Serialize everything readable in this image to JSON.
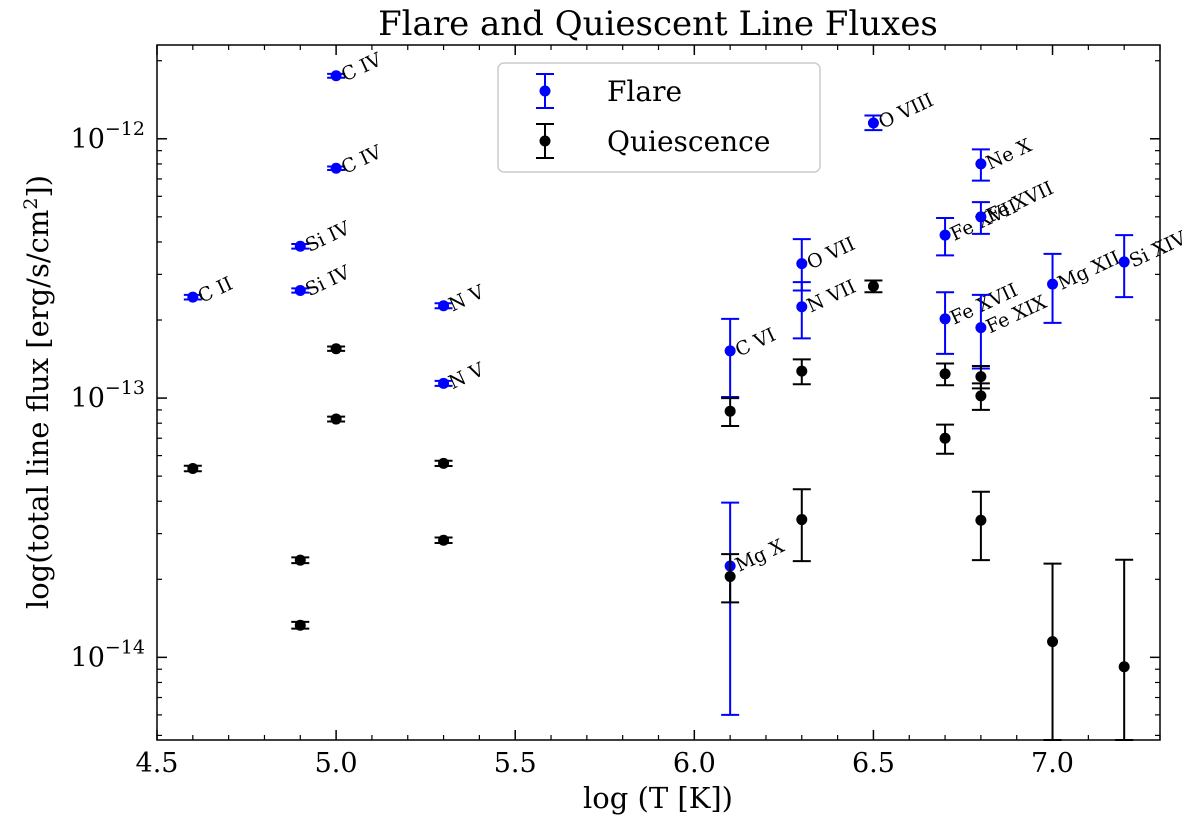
{
  "chart_data": {
    "type": "scatter",
    "title": "Flare and Quiescent Line Fluxes",
    "xlabel": "log (T [K])",
    "ylabel": {
      "prefix": "log(total line flux [erg/s/cm",
      "sup": "2",
      "suffix": "])"
    },
    "yscale": "log",
    "xlim": [
      4.5,
      7.3
    ],
    "ylim": [
      4.8e-15,
      2.3e-12
    ],
    "xticks": [
      {
        "value": 4.5,
        "label": "4.5"
      },
      {
        "value": 5.0,
        "label": "5.0"
      },
      {
        "value": 5.5,
        "label": "5.5"
      },
      {
        "value": 6.0,
        "label": "6.0"
      },
      {
        "value": 6.5,
        "label": "6.5"
      },
      {
        "value": 7.0,
        "label": "7.0"
      }
    ],
    "yticks": [
      {
        "value": 1e-14,
        "base": "10",
        "exp": "−14"
      },
      {
        "value": 1e-13,
        "base": "10",
        "exp": "−13"
      },
      {
        "value": 1e-12,
        "base": "10",
        "exp": "−12"
      }
    ],
    "colors": {
      "flare": "#0000ff",
      "quiescence": "#000000"
    },
    "legend": {
      "position": "upper-center",
      "entries": [
        {
          "label": "Flare",
          "series": "flare"
        },
        {
          "label": "Quiescence",
          "series": "quiescence"
        }
      ]
    },
    "series": [
      {
        "name": "Flare",
        "key": "flare",
        "points": [
          {
            "x": 4.6,
            "y": 2.45e-13,
            "lo": 2.4e-13,
            "hi": 2.5e-13,
            "label": "C II"
          },
          {
            "x": 4.9,
            "y": 3.85e-13,
            "lo": 3.77e-13,
            "hi": 3.93e-13,
            "label": "Si IV"
          },
          {
            "x": 4.9,
            "y": 2.6e-13,
            "lo": 2.55e-13,
            "hi": 2.65e-13,
            "label": "Si IV"
          },
          {
            "x": 5.0,
            "y": 1.75e-12,
            "lo": 1.72e-12,
            "hi": 1.78e-12,
            "label": "C IV"
          },
          {
            "x": 5.0,
            "y": 7.7e-13,
            "lo": 7.58e-13,
            "hi": 7.82e-13,
            "label": "C IV"
          },
          {
            "x": 5.3,
            "y": 2.27e-13,
            "lo": 2.22e-13,
            "hi": 2.32e-13,
            "label": "N V"
          },
          {
            "x": 5.3,
            "y": 1.14e-13,
            "lo": 1.115e-13,
            "hi": 1.165e-13,
            "label": "N V"
          },
          {
            "x": 6.1,
            "y": 1.52e-13,
            "lo": 1.01e-13,
            "hi": 2.02e-13,
            "label": "C VI"
          },
          {
            "x": 6.1,
            "y": 2.25e-14,
            "lo": 6e-15,
            "hi": 3.95e-14,
            "label": "Mg X"
          },
          {
            "x": 6.3,
            "y": 3.3e-13,
            "lo": 2.6e-13,
            "hi": 4.1e-13,
            "label": "O VII"
          },
          {
            "x": 6.3,
            "y": 2.25e-13,
            "lo": 1.7e-13,
            "hi": 2.8e-13,
            "label": "N VII"
          },
          {
            "x": 6.5,
            "y": 1.15e-12,
            "lo": 1.08e-12,
            "hi": 1.23e-12,
            "label": "O VIII"
          },
          {
            "x": 6.7,
            "y": 4.25e-13,
            "lo": 3.55e-13,
            "hi": 4.95e-13,
            "label": "Fe XVII"
          },
          {
            "x": 6.7,
            "y": 2.02e-13,
            "lo": 1.48e-13,
            "hi": 2.56e-13,
            "label": "Fe XVII"
          },
          {
            "x": 6.8,
            "y": 8e-13,
            "lo": 6.9e-13,
            "hi": 9.1e-13,
            "label": "Ne X"
          },
          {
            "x": 6.8,
            "y": 5e-13,
            "lo": 4.3e-13,
            "hi": 5.7e-13,
            "label": "Fe XVII"
          },
          {
            "x": 6.8,
            "y": 1.87e-13,
            "lo": 1.3e-13,
            "hi": 2.5e-13,
            "label": "Fe XIX"
          },
          {
            "x": 7.0,
            "y": 2.75e-13,
            "lo": 1.95e-13,
            "hi": 3.6e-13,
            "label": "Mg XII"
          },
          {
            "x": 7.2,
            "y": 3.35e-13,
            "lo": 2.45e-13,
            "hi": 4.25e-13,
            "label": "Si XIV"
          }
        ]
      },
      {
        "name": "Quiescence",
        "key": "quiescence",
        "points": [
          {
            "x": 4.6,
            "y": 5.35e-14,
            "lo": 5.22e-14,
            "hi": 5.48e-14
          },
          {
            "x": 4.9,
            "y": 2.37e-14,
            "lo": 2.31e-14,
            "hi": 2.43e-14
          },
          {
            "x": 4.9,
            "y": 1.33e-14,
            "lo": 1.29e-14,
            "hi": 1.37e-14
          },
          {
            "x": 5.0,
            "y": 1.55e-13,
            "lo": 1.52e-13,
            "hi": 1.58e-13
          },
          {
            "x": 5.0,
            "y": 8.3e-14,
            "lo": 8.12e-14,
            "hi": 8.48e-14
          },
          {
            "x": 5.3,
            "y": 5.6e-14,
            "lo": 5.47e-14,
            "hi": 5.73e-14
          },
          {
            "x": 5.3,
            "y": 2.83e-14,
            "lo": 2.76e-14,
            "hi": 2.9e-14
          },
          {
            "x": 6.1,
            "y": 8.9e-14,
            "lo": 7.8e-14,
            "hi": 1e-13
          },
          {
            "x": 6.1,
            "y": 2.05e-14,
            "lo": 1.63e-14,
            "hi": 2.5e-14
          },
          {
            "x": 6.3,
            "y": 1.27e-13,
            "lo": 1.13e-13,
            "hi": 1.41e-13
          },
          {
            "x": 6.3,
            "y": 3.4e-14,
            "lo": 2.35e-14,
            "hi": 4.45e-14
          },
          {
            "x": 6.5,
            "y": 2.7e-13,
            "lo": 2.56e-13,
            "hi": 2.84e-13
          },
          {
            "x": 6.7,
            "y": 1.24e-13,
            "lo": 1.12e-13,
            "hi": 1.36e-13
          },
          {
            "x": 6.7,
            "y": 7e-14,
            "lo": 6.1e-14,
            "hi": 7.9e-14
          },
          {
            "x": 6.8,
            "y": 1.21e-13,
            "lo": 1.09e-13,
            "hi": 1.33e-13
          },
          {
            "x": 6.8,
            "y": 1.02e-13,
            "lo": 9e-14,
            "hi": 1.14e-13
          },
          {
            "x": 6.8,
            "y": 3.38e-14,
            "lo": 2.37e-14,
            "hi": 4.35e-14
          },
          {
            "x": 7.0,
            "y": 1.15e-14,
            "lo": 4.8e-15,
            "hi": 2.3e-14
          },
          {
            "x": 7.2,
            "y": 9.2e-15,
            "lo": 4.8e-15,
            "hi": 2.38e-14
          }
        ]
      }
    ]
  }
}
